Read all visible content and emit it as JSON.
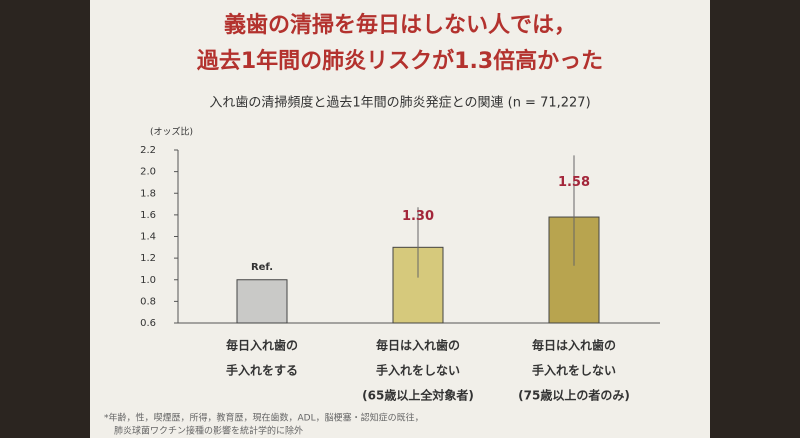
{
  "chart_data": {
    "type": "bar",
    "title": [
      "義歯の清掃を毎日はしない人では，",
      "過去1年間の肺炎リスクが1.3倍高かった"
    ],
    "subtitle": "入れ歯の清掃頻度と過去1年間の肺炎発症との関連 (n = 71,227)",
    "y_label": "(オッズ比)",
    "categories": [
      [
        "毎日入れ歯の",
        "手入れをする"
      ],
      [
        "毎日は入れ歯の",
        "手入れをしない",
        "(65歳以上全対象者)"
      ],
      [
        "毎日は入れ歯の",
        "手入れをしない",
        "(75歳以上の者のみ)"
      ]
    ],
    "values": [
      1,
      1.3,
      1.58
    ],
    "value_labels": [
      "Ref.",
      "1.30",
      "1.58"
    ],
    "ci_low": [
      null,
      1.02,
      1.13
    ],
    "ci_high": [
      null,
      1.67,
      2.15
    ],
    "colors": [
      "#c9c9c7",
      "#d6c97c",
      "#b8a44f"
    ],
    "label_colors": [
      "#333333",
      "#a3263a",
      "#a3263a"
    ],
    "ylim": [
      0.6,
      2.2
    ],
    "yticks": [
      0.6,
      0.8,
      {
        "value": 1,
        "label": "1.0"
      },
      1.2,
      1.4,
      1.6,
      1.8,
      {
        "value": 2,
        "label": "2.0"
      },
      2.2
    ],
    "notes": [
      "*年齢，性，喫煙歴，所得，教育歴，現在歯数，ADL，脳梗塞・認知症の既往，",
      "肺炎球菌ワクチン接種の影響を統計学的に除外"
    ]
  }
}
